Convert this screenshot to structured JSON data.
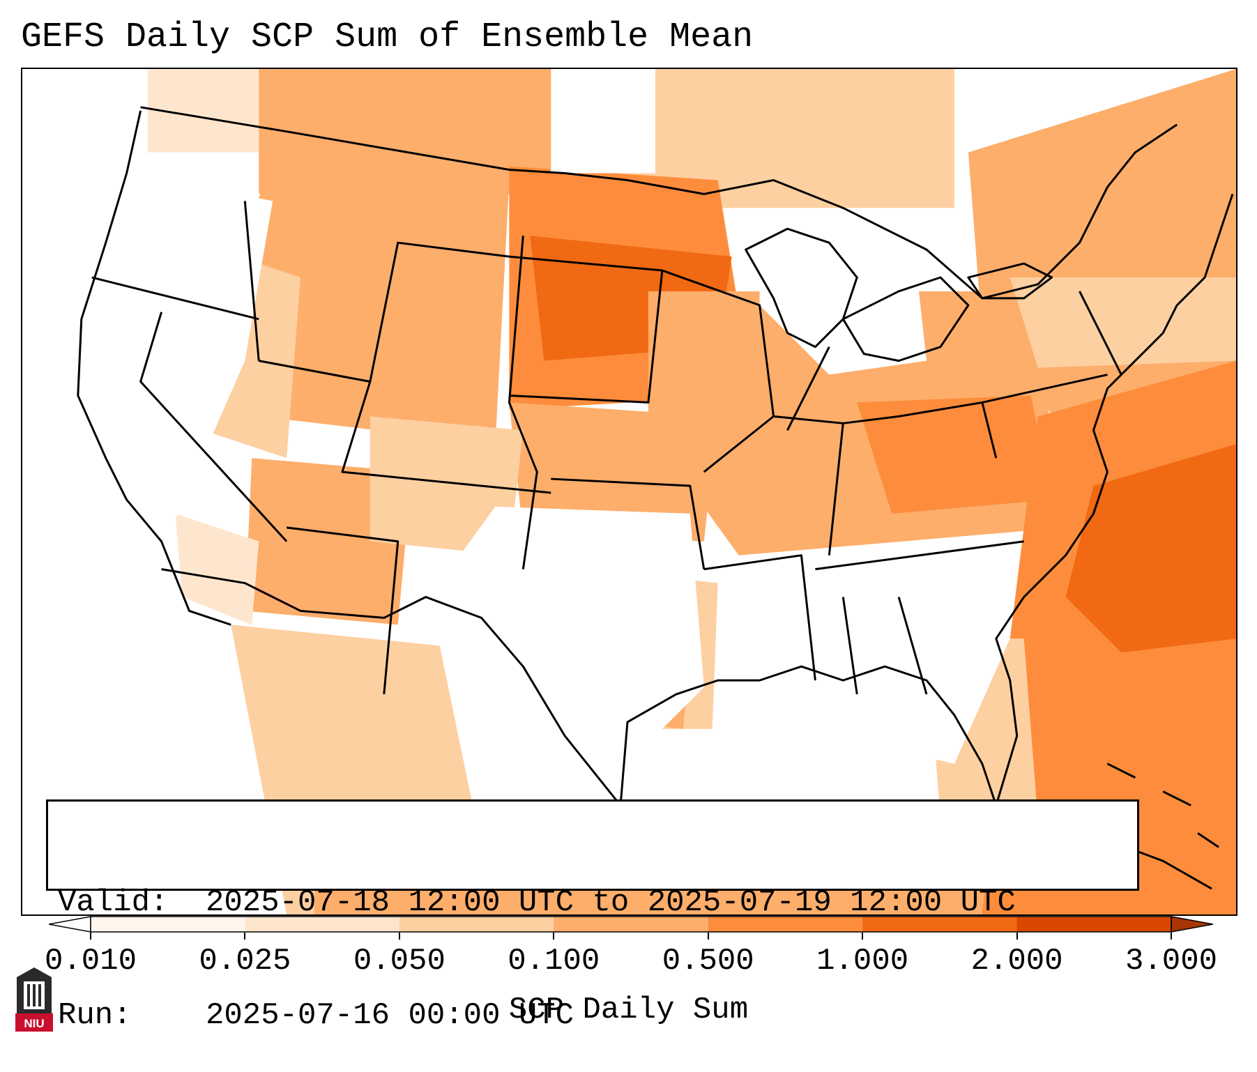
{
  "title": "GEFS Daily SCP Sum of Ensemble Mean",
  "info": {
    "valid_label": "Valid:",
    "valid_value": "2025-07-18 12:00 UTC to 2025-07-19 12:00 UTC",
    "run_label": "Run:",
    "run_value": "2025-07-16 00:00 UTC"
  },
  "colorbar": {
    "label": "SCP Daily Sum",
    "ticks": [
      "0.010",
      "0.025",
      "0.050",
      "0.100",
      "0.500",
      "1.000",
      "2.000",
      "3.000"
    ],
    "colors": [
      "#fff5eb",
      "#fee6ce",
      "#fdd0a2",
      "#fdae6b",
      "#fd8d3c",
      "#f16913",
      "#d94801"
    ],
    "under_color": "#ffffff",
    "over_color": "#a63603"
  },
  "logo": {
    "text": "NIU"
  }
}
